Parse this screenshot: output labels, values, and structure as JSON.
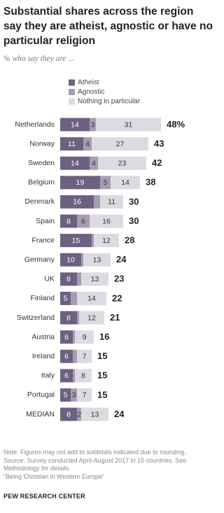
{
  "chart_data": {
    "type": "stacked-bar-horizontal",
    "title": "Substantial shares across the region say they are atheist, agnostic or have no particular religion",
    "subtitle": "% who say they are ...",
    "categories": [
      "Netherlands",
      "Norway",
      "Sweden",
      "Belgium",
      "Denmark",
      "Spain",
      "France",
      "Germany",
      "UK",
      "Finland",
      "Switzerland",
      "Austria",
      "Ireland",
      "Italy",
      "Portugal",
      "MEDIAN"
    ],
    "series": [
      {
        "name": "Atheist",
        "color": "#6c6180",
        "values": [
          14,
          11,
          14,
          19,
          16,
          8,
          15,
          10,
          8,
          5,
          8,
          6,
          6,
          6,
          5,
          8
        ]
      },
      {
        "name": "Agnostic",
        "color": "#a79db2",
        "values": [
          3,
          4,
          4,
          5,
          3,
          6,
          1,
          1,
          2,
          3,
          1,
          1,
          2,
          1,
          3,
          2
        ],
        "labeled": [
          true,
          true,
          true,
          true,
          false,
          true,
          false,
          false,
          false,
          false,
          false,
          false,
          false,
          false,
          true,
          true
        ]
      },
      {
        "name": "Nothing in particular",
        "color": "#dddbe1",
        "values": [
          31,
          27,
          23,
          14,
          11,
          16,
          12,
          13,
          13,
          14,
          12,
          9,
          7,
          8,
          7,
          13
        ]
      }
    ],
    "totals": {
      "values": [
        48,
        43,
        42,
        38,
        30,
        30,
        28,
        24,
        23,
        22,
        21,
        16,
        15,
        15,
        15,
        24
      ],
      "value_labels": [
        "48%",
        null,
        null,
        null,
        null,
        null,
        null,
        null,
        null,
        null,
        null,
        null,
        null,
        null,
        null,
        null
      ]
    },
    "note": "Note: Figures may not add to subtotals indicated due to rounding.",
    "source": "Source: Survey conducted April-August 2017 in 15 countries. See Methodology for details.",
    "citation": "“Being Christian in Western Europe”",
    "credit": "PEW RESEARCH CENTER"
  }
}
